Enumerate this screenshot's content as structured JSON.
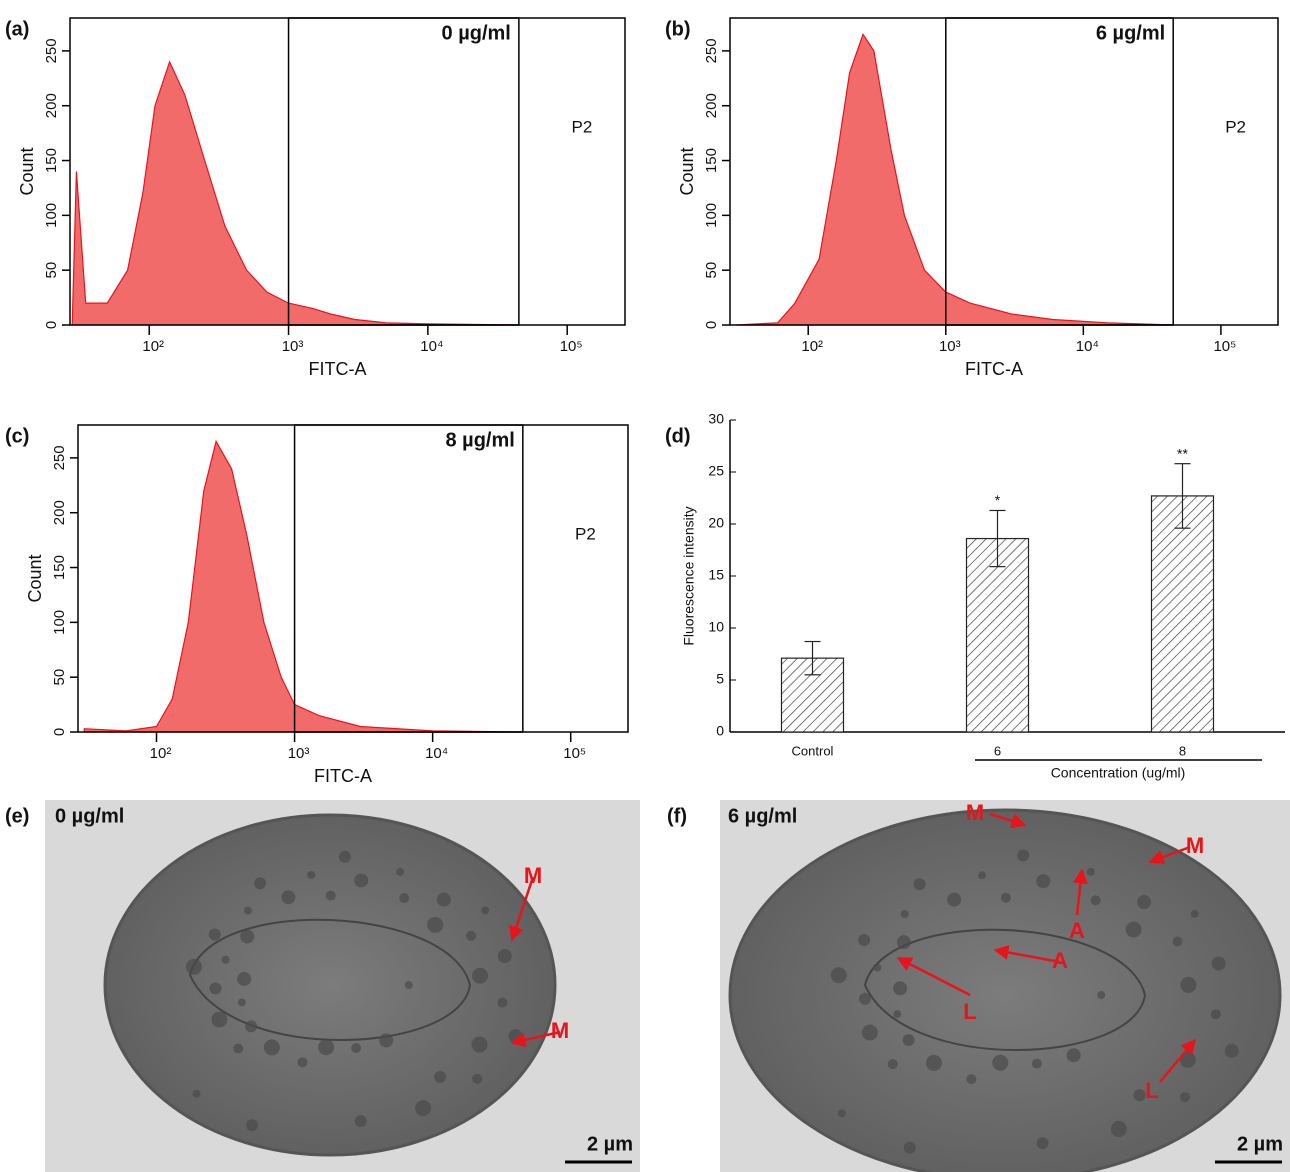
{
  "chart_data": [
    {
      "type": "histogram",
      "panel_label": "(a)",
      "title": "0 µg/ml",
      "xlabel": "FITC-A",
      "ylabel": "Count",
      "gate_label": "P2",
      "color": "#f26b6b",
      "log_x": true,
      "xlim": [
        27,
        260000
      ],
      "ylim": [
        0,
        280
      ],
      "xticks": [
        {
          "value": 100,
          "label": "10²"
        },
        {
          "value": 1000,
          "label": "10³"
        },
        {
          "value": 10000,
          "label": "10⁴"
        },
        {
          "value": 100000,
          "label": "10⁵"
        }
      ],
      "yticks": [
        0,
        50,
        100,
        150,
        200,
        250
      ],
      "gates": [
        1000,
        45000
      ],
      "x": [
        28,
        30,
        35,
        50,
        70,
        90,
        110,
        140,
        180,
        250,
        350,
        500,
        700,
        1000,
        1500,
        2000,
        3000,
        5000,
        10000,
        45000
      ],
      "values": [
        0,
        140,
        20,
        20,
        50,
        120,
        200,
        240,
        210,
        150,
        90,
        50,
        30,
        20,
        15,
        10,
        5,
        2,
        1,
        0
      ]
    },
    {
      "type": "histogram",
      "panel_label": "(b)",
      "title": "6 µg/ml",
      "xlabel": "FITC-A",
      "ylabel": "Count",
      "gate_label": "P2",
      "color": "#f26b6b",
      "log_x": true,
      "xlim": [
        27,
        260000
      ],
      "ylim": [
        0,
        280
      ],
      "xticks": [
        {
          "value": 100,
          "label": "10²"
        },
        {
          "value": 1000,
          "label": "10³"
        },
        {
          "value": 10000,
          "label": "10⁴"
        },
        {
          "value": 100000,
          "label": "10⁵"
        }
      ],
      "yticks": [
        0,
        50,
        100,
        150,
        200,
        250
      ],
      "gates": [
        1000,
        45000
      ],
      "x": [
        30,
        60,
        80,
        120,
        160,
        200,
        250,
        300,
        400,
        500,
        700,
        1000,
        1500,
        3000,
        6000,
        15000,
        45000
      ],
      "values": [
        0,
        2,
        20,
        60,
        150,
        230,
        265,
        250,
        160,
        100,
        50,
        30,
        20,
        10,
        5,
        2,
        0
      ]
    },
    {
      "type": "histogram",
      "panel_label": "(c)",
      "title": "8 µg/ml",
      "xlabel": "FITC-A",
      "ylabel": "Count",
      "gate_label": "P2",
      "color": "#f26b6b",
      "log_x": true,
      "xlim": [
        27,
        260000
      ],
      "ylim": [
        0,
        280
      ],
      "xticks": [
        {
          "value": 100,
          "label": "10²"
        },
        {
          "value": 1000,
          "label": "10³"
        },
        {
          "value": 10000,
          "label": "10⁴"
        },
        {
          "value": 100000,
          "label": "10⁵"
        }
      ],
      "yticks": [
        0,
        50,
        100,
        150,
        200,
        250
      ],
      "gates": [
        1000,
        45000
      ],
      "x": [
        30,
        60,
        100,
        130,
        170,
        220,
        270,
        350,
        450,
        600,
        800,
        1000,
        1500,
        3000,
        10000,
        45000
      ],
      "values": [
        3,
        1,
        5,
        30,
        100,
        220,
        265,
        240,
        180,
        100,
        50,
        25,
        15,
        5,
        1,
        0
      ]
    },
    {
      "type": "bar",
      "panel_label": "(d)",
      "xlabel": "Concentration (ug/ml)",
      "ylabel": "Fluorescence intensity",
      "categories": [
        "Control",
        "6",
        "8"
      ],
      "values": [
        7.1,
        18.6,
        22.7
      ],
      "errors": [
        1.6,
        2.7,
        3.1
      ],
      "significance": [
        null,
        "*",
        "**"
      ],
      "ylim": [
        0,
        30
      ],
      "yticks": [
        0,
        5,
        10,
        15,
        20,
        25,
        30
      ]
    }
  ],
  "images": [
    {
      "panel_label": "(e)",
      "concentration": "0 µg/ml",
      "scale_bar": "2 µm",
      "annotations": [
        "M",
        "M"
      ]
    },
    {
      "panel_label": "(f)",
      "concentration": "6 µg/ml",
      "scale_bar": "2 µm",
      "annotations": [
        "M",
        "M",
        "A",
        "A",
        "L",
        "L"
      ]
    }
  ]
}
